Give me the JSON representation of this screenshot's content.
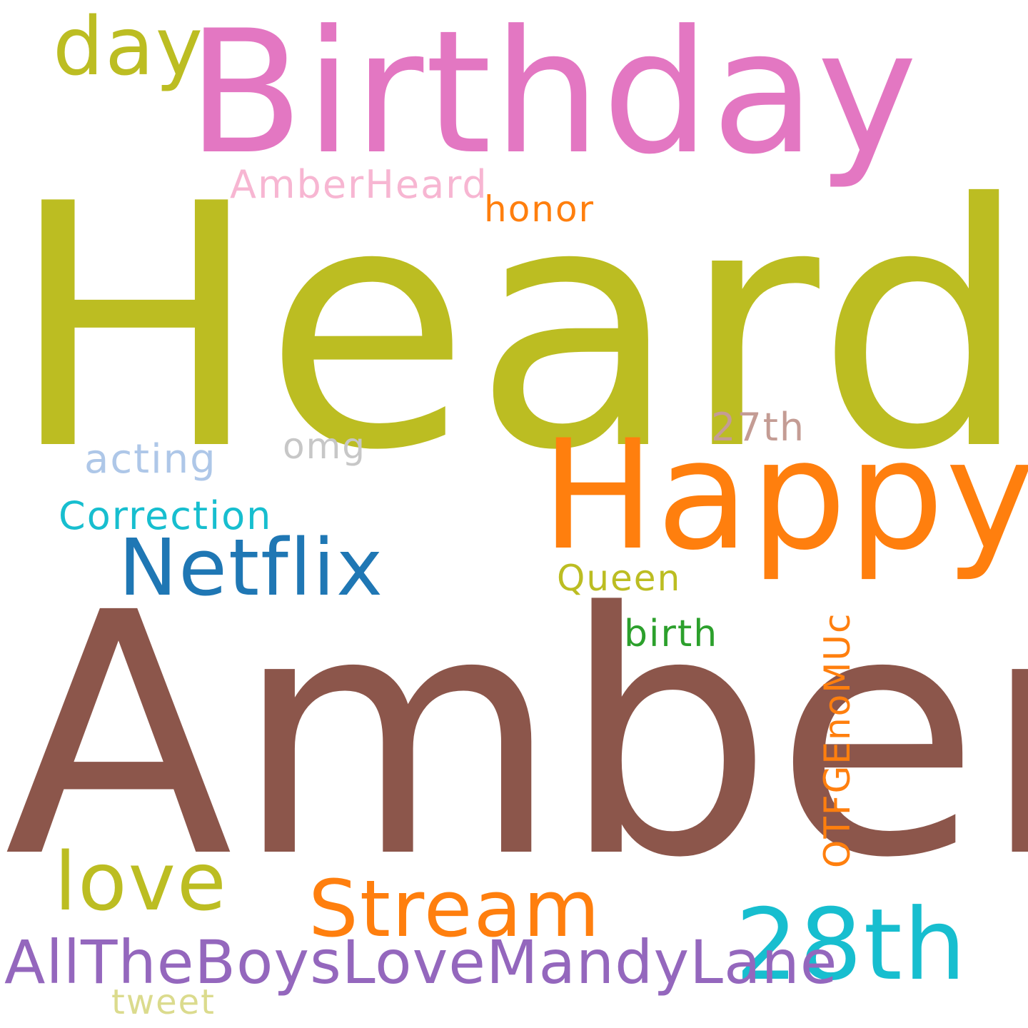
{
  "word_cloud": {
    "background": "#ffffff",
    "words": [
      {
        "text": "Heard",
        "color": "#bcbd22"
      },
      {
        "text": "Amber",
        "color": "#8c564b"
      },
      {
        "text": "Birthday",
        "color": "#e377c2"
      },
      {
        "text": "Happy",
        "color": "#ff7f0e"
      },
      {
        "text": "Netflix",
        "color": "#1f77b4"
      },
      {
        "text": "28th",
        "color": "#17becf"
      },
      {
        "text": "Stream",
        "color": "#ff7f0e"
      },
      {
        "text": "love",
        "color": "#bcbd22"
      },
      {
        "text": "day",
        "color": "#bcbd22"
      },
      {
        "text": "AllTheBoysLoveMandyLane",
        "color": "#9467bd"
      },
      {
        "text": "Correction",
        "color": "#17becf"
      },
      {
        "text": "AmberHeard",
        "color": "#f7b6d2"
      },
      {
        "text": "honor",
        "color": "#ff7f0e"
      },
      {
        "text": "Queen",
        "color": "#bcbd22"
      },
      {
        "text": "birth",
        "color": "#2ca02c"
      },
      {
        "text": "27th",
        "color": "#c49c94"
      },
      {
        "text": "acting",
        "color": "#aec7e8"
      },
      {
        "text": "omg",
        "color": "#c7c7c7"
      },
      {
        "text": "tweet",
        "color": "#dbdb8d"
      },
      {
        "text": "OTFGEnoMUc",
        "color": "#ff7f0e"
      }
    ]
  }
}
